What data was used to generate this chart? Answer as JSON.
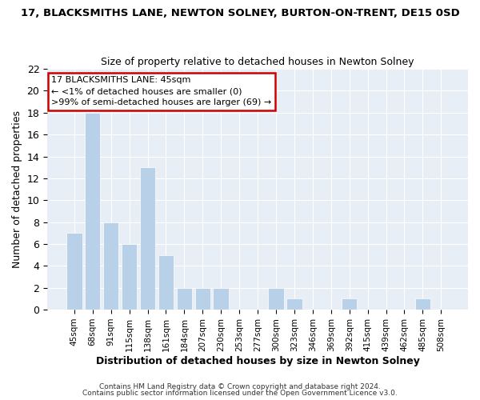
{
  "title_line1": "17, BLACKSMITHS LANE, NEWTON SOLNEY, BURTON-ON-TRENT, DE15 0SD",
  "title_line2": "Size of property relative to detached houses in Newton Solney",
  "xlabel": "Distribution of detached houses by size in Newton Solney",
  "ylabel": "Number of detached properties",
  "categories": [
    "45sqm",
    "68sqm",
    "91sqm",
    "115sqm",
    "138sqm",
    "161sqm",
    "184sqm",
    "207sqm",
    "230sqm",
    "253sqm",
    "277sqm",
    "300sqm",
    "323sqm",
    "346sqm",
    "369sqm",
    "392sqm",
    "415sqm",
    "439sqm",
    "462sqm",
    "485sqm",
    "508sqm"
  ],
  "values": [
    7,
    18,
    8,
    6,
    13,
    5,
    2,
    2,
    2,
    0,
    0,
    2,
    1,
    0,
    0,
    1,
    0,
    0,
    0,
    1,
    0
  ],
  "highlight_index": 0,
  "bar_color_normal": "#b8d0e8",
  "bar_color_highlight": "#b8d0e8",
  "bar_edge_color": "#ffffff",
  "annotation_box_edge": "#cc0000",
  "annotation_title": "17 BLACKSMITHS LANE: 45sqm",
  "annotation_line1": "← <1% of detached houses are smaller (0)",
  "annotation_line2": ">99% of semi-detached houses are larger (69) →",
  "ylim": [
    0,
    22
  ],
  "yticks": [
    0,
    2,
    4,
    6,
    8,
    10,
    12,
    14,
    16,
    18,
    20,
    22
  ],
  "footer_line1": "Contains HM Land Registry data © Crown copyright and database right 2024.",
  "footer_line2": "Contains public sector information licensed under the Open Government Licence v3.0.",
  "background_color": "#ffffff",
  "plot_bg_color": "#e8eef5",
  "grid_color": "#ffffff"
}
